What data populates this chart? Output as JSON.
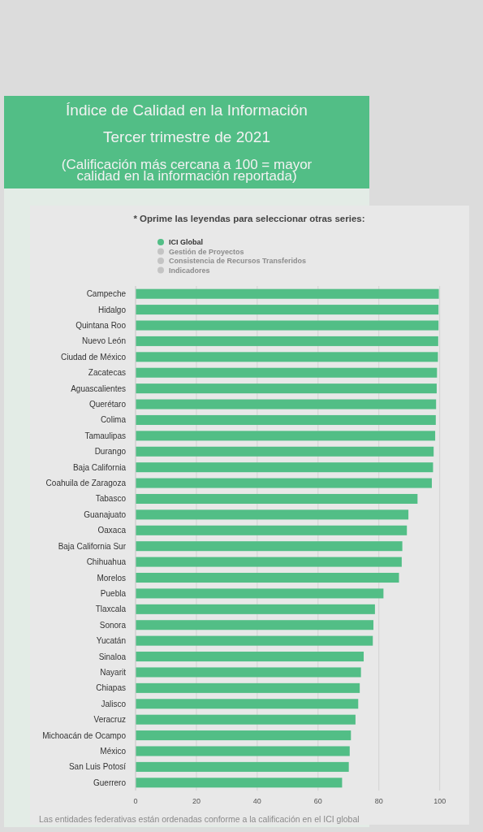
{
  "chart_data": {
    "type": "bar",
    "orientation": "horizontal",
    "title": "Índice de Calidad en la Información",
    "subtitle": "Tercer trimestre de 2021",
    "annotations": [
      "(Calificación más cercana a 100 = mayor calidad en la información reportada)",
      "Las entidades federativas están ordenadas conforme a la calificación en el ICI global"
    ],
    "legend_title": "* Oprime las leyendas para seleccionar otras series:",
    "legend": "top",
    "categories": [
      "Campeche",
      "Hidalgo",
      "Quintana Roo",
      "Nuevo León",
      "Ciudad de México",
      "Zacatecas",
      "Aguascalientes",
      "Querétaro",
      "Colima",
      "Tamaulipas",
      "Durango",
      "Baja California",
      "Coahuila de Zaragoza",
      "Tabasco",
      "Guanajuato",
      "Oaxaca",
      "Baja California Sur",
      "Chihuahua",
      "Morelos",
      "Puebla",
      "Tlaxcala",
      "Sonora",
      "Yucatán",
      "Sinaloa",
      "Nayarit",
      "Chiapas",
      "Jalisco",
      "Veracruz",
      "Michoacán de Ocampo",
      "México",
      "San Luis Potosí",
      "Guerrero"
    ],
    "series": [
      {
        "name": "ICI Global",
        "color": "#52be86",
        "values": [
          99.7,
          99.6,
          99.6,
          99.5,
          99.4,
          99.1,
          99.0,
          98.8,
          98.7,
          98.5,
          98.0,
          97.8,
          97.4,
          92.7,
          89.7,
          89.2,
          87.7,
          87.5,
          86.6,
          81.5,
          78.7,
          78.2,
          78.0,
          75.0,
          74.1,
          73.7,
          73.2,
          72.3,
          70.8,
          70.4,
          70.1,
          67.9
        ]
      },
      {
        "name": "Gestión de Proyectos",
        "color": "#c4c4c4",
        "values": [
          null,
          null,
          null,
          null,
          null,
          null,
          null,
          null,
          null,
          null,
          null,
          null,
          null,
          null,
          null,
          null,
          null,
          null,
          null,
          null,
          null,
          null,
          null,
          null,
          null,
          null,
          null,
          null,
          null,
          null,
          null,
          null
        ]
      },
      {
        "name": "Consistencia de Recursos Transferidos",
        "color": "#c4c4c4",
        "values": [
          null,
          null,
          null,
          null,
          null,
          null,
          null,
          null,
          null,
          null,
          null,
          null,
          null,
          null,
          null,
          null,
          null,
          null,
          null,
          null,
          null,
          null,
          null,
          null,
          null,
          null,
          null,
          null,
          null,
          null,
          null,
          null
        ]
      },
      {
        "name": "Indicadores",
        "color": "#c4c4c4",
        "values": [
          null,
          null,
          null,
          null,
          null,
          null,
          null,
          null,
          null,
          null,
          null,
          null,
          null,
          null,
          null,
          null,
          null,
          null,
          null,
          null,
          null,
          null,
          null,
          null,
          null,
          null,
          null,
          null,
          null,
          null,
          null,
          null
        ]
      }
    ],
    "xlim": [
      0,
      100
    ],
    "xticks": [
      0,
      20,
      40,
      60,
      80,
      100
    ],
    "grid": "x"
  }
}
